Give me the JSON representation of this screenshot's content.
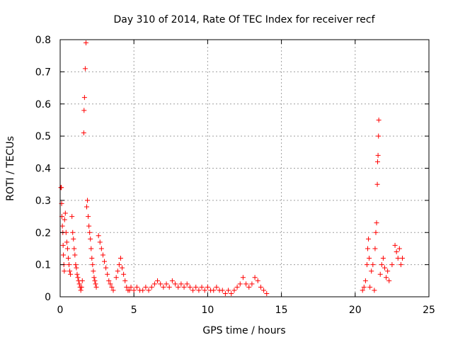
{
  "chart_data": {
    "type": "scatter",
    "title": "Day 310 of 2014, Rate Of TEC Index for receiver recf",
    "xlabel": "GPS time / hours",
    "ylabel": "ROTI / TECUs",
    "xlim": [
      0,
      25
    ],
    "ylim": [
      0,
      0.8
    ],
    "xticks": [
      0,
      5,
      10,
      15,
      20,
      25
    ],
    "yticks": [
      0,
      0.1,
      0.2,
      0.3,
      0.4,
      0.5,
      0.6,
      0.7,
      0.8
    ],
    "xtick_labels": [
      "0",
      "5",
      "10",
      "15",
      "20",
      "25"
    ],
    "ytick_labels": [
      "0",
      "0.1",
      "0.2",
      "0.3",
      "0.4",
      "0.5",
      "0.6",
      "0.7",
      "0.8"
    ],
    "grid": true,
    "marker": "+",
    "color": "#ff0000",
    "series": [
      {
        "name": "ROTI",
        "points": [
          [
            0.05,
            0.34
          ],
          [
            0.08,
            0.34
          ],
          [
            0.1,
            0.29
          ],
          [
            0.12,
            0.25
          ],
          [
            0.15,
            0.22
          ],
          [
            0.18,
            0.2
          ],
          [
            0.2,
            0.16
          ],
          [
            0.22,
            0.13
          ],
          [
            0.25,
            0.1
          ],
          [
            0.28,
            0.08
          ],
          [
            0.3,
            0.24
          ],
          [
            0.35,
            0.26
          ],
          [
            0.4,
            0.2
          ],
          [
            0.45,
            0.17
          ],
          [
            0.5,
            0.15
          ],
          [
            0.55,
            0.12
          ],
          [
            0.6,
            0.1
          ],
          [
            0.65,
            0.08
          ],
          [
            0.7,
            0.07
          ],
          [
            0.8,
            0.25
          ],
          [
            0.85,
            0.2
          ],
          [
            0.9,
            0.18
          ],
          [
            0.95,
            0.15
          ],
          [
            1.0,
            0.13
          ],
          [
            1.05,
            0.1
          ],
          [
            1.1,
            0.09
          ],
          [
            1.15,
            0.07
          ],
          [
            1.2,
            0.06
          ],
          [
            1.25,
            0.05
          ],
          [
            1.3,
            0.04
          ],
          [
            1.35,
            0.03
          ],
          [
            1.4,
            0.02
          ],
          [
            1.45,
            0.03
          ],
          [
            1.5,
            0.05
          ],
          [
            1.6,
            0.51
          ],
          [
            1.62,
            0.58
          ],
          [
            1.65,
            0.62
          ],
          [
            1.7,
            0.71
          ],
          [
            1.75,
            0.79
          ],
          [
            1.8,
            0.28
          ],
          [
            1.85,
            0.3
          ],
          [
            1.9,
            0.25
          ],
          [
            1.95,
            0.22
          ],
          [
            2.0,
            0.2
          ],
          [
            2.05,
            0.18
          ],
          [
            2.1,
            0.15
          ],
          [
            2.15,
            0.12
          ],
          [
            2.2,
            0.1
          ],
          [
            2.25,
            0.08
          ],
          [
            2.3,
            0.06
          ],
          [
            2.35,
            0.05
          ],
          [
            2.4,
            0.04
          ],
          [
            2.45,
            0.03
          ],
          [
            2.6,
            0.19
          ],
          [
            2.7,
            0.17
          ],
          [
            2.8,
            0.15
          ],
          [
            2.9,
            0.13
          ],
          [
            3.0,
            0.11
          ],
          [
            3.1,
            0.09
          ],
          [
            3.2,
            0.07
          ],
          [
            3.3,
            0.05
          ],
          [
            3.4,
            0.04
          ],
          [
            3.5,
            0.03
          ],
          [
            3.6,
            0.02
          ],
          [
            3.8,
            0.06
          ],
          [
            3.9,
            0.08
          ],
          [
            4.0,
            0.1
          ],
          [
            4.1,
            0.12
          ],
          [
            4.2,
            0.09
          ],
          [
            4.3,
            0.07
          ],
          [
            4.4,
            0.05
          ],
          [
            4.5,
            0.03
          ],
          [
            4.6,
            0.02
          ],
          [
            4.7,
            0.02
          ],
          [
            4.8,
            0.03
          ],
          [
            5.0,
            0.02
          ],
          [
            5.2,
            0.03
          ],
          [
            5.4,
            0.02
          ],
          [
            5.6,
            0.02
          ],
          [
            5.8,
            0.03
          ],
          [
            6.0,
            0.02
          ],
          [
            6.2,
            0.03
          ],
          [
            6.4,
            0.04
          ],
          [
            6.6,
            0.05
          ],
          [
            6.8,
            0.04
          ],
          [
            7.0,
            0.03
          ],
          [
            7.2,
            0.04
          ],
          [
            7.4,
            0.03
          ],
          [
            7.6,
            0.05
          ],
          [
            7.8,
            0.04
          ],
          [
            8.0,
            0.03
          ],
          [
            8.2,
            0.04
          ],
          [
            8.4,
            0.03
          ],
          [
            8.6,
            0.04
          ],
          [
            8.8,
            0.03
          ],
          [
            9.0,
            0.02
          ],
          [
            9.2,
            0.03
          ],
          [
            9.4,
            0.02
          ],
          [
            9.6,
            0.03
          ],
          [
            9.8,
            0.02
          ],
          [
            10.0,
            0.03
          ],
          [
            10.2,
            0.02
          ],
          [
            10.4,
            0.02
          ],
          [
            10.6,
            0.03
          ],
          [
            10.8,
            0.02
          ],
          [
            11.0,
            0.02
          ],
          [
            11.2,
            0.01
          ],
          [
            11.4,
            0.02
          ],
          [
            11.6,
            0.01
          ],
          [
            11.8,
            0.02
          ],
          [
            12.0,
            0.03
          ],
          [
            12.2,
            0.04
          ],
          [
            12.4,
            0.06
          ],
          [
            12.6,
            0.04
          ],
          [
            12.8,
            0.03
          ],
          [
            13.0,
            0.04
          ],
          [
            13.2,
            0.06
          ],
          [
            13.4,
            0.05
          ],
          [
            13.6,
            0.03
          ],
          [
            13.8,
            0.02
          ],
          [
            14.0,
            0.01
          ],
          [
            20.5,
            0.02
          ],
          [
            20.6,
            0.03
          ],
          [
            20.7,
            0.05
          ],
          [
            20.8,
            0.1
          ],
          [
            20.85,
            0.15
          ],
          [
            20.9,
            0.18
          ],
          [
            20.95,
            0.12
          ],
          [
            21.0,
            0.03
          ],
          [
            21.1,
            0.08
          ],
          [
            21.2,
            0.1
          ],
          [
            21.3,
            0.02
          ],
          [
            21.35,
            0.15
          ],
          [
            21.4,
            0.2
          ],
          [
            21.45,
            0.23
          ],
          [
            21.5,
            0.35
          ],
          [
            21.52,
            0.42
          ],
          [
            21.55,
            0.44
          ],
          [
            21.58,
            0.5
          ],
          [
            21.6,
            0.55
          ],
          [
            21.7,
            0.07
          ],
          [
            21.8,
            0.1
          ],
          [
            21.9,
            0.12
          ],
          [
            22.0,
            0.09
          ],
          [
            22.1,
            0.06
          ],
          [
            22.2,
            0.08
          ],
          [
            22.3,
            0.05
          ],
          [
            22.5,
            0.1
          ],
          [
            22.7,
            0.16
          ],
          [
            22.8,
            0.14
          ],
          [
            22.9,
            0.12
          ],
          [
            23.0,
            0.15
          ],
          [
            23.1,
            0.1
          ],
          [
            23.2,
            0.12
          ]
        ]
      }
    ]
  }
}
